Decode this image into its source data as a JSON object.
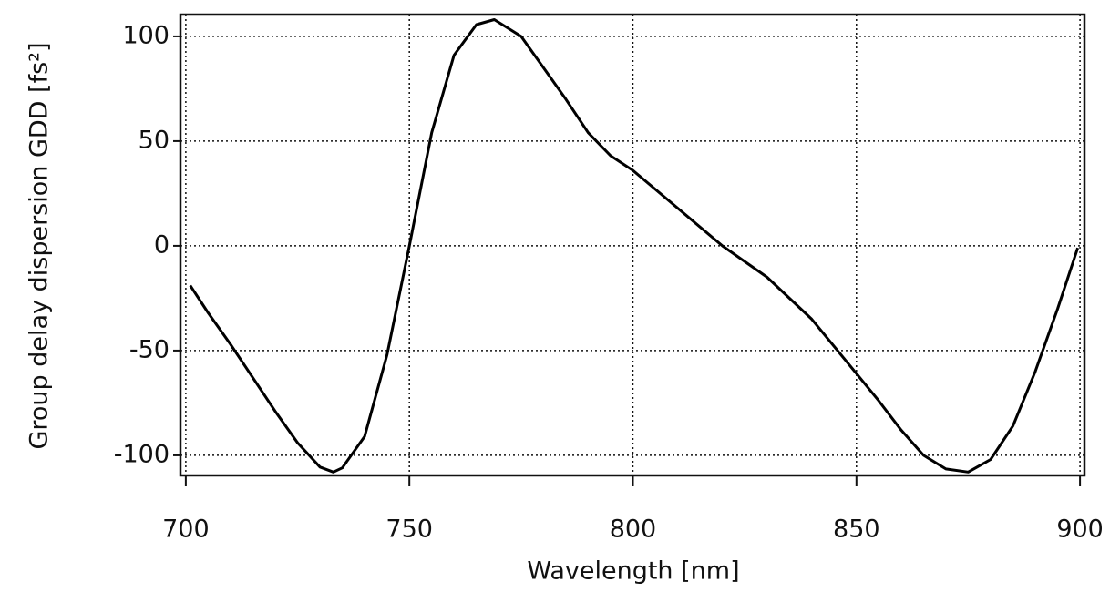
{
  "chart_data": {
    "type": "line",
    "xlabel": "Wavelength [nm]",
    "ylabel": "Group delay dispersion GDD [fs²]",
    "x": [
      701,
      705,
      710,
      715,
      720,
      725,
      730,
      733,
      735,
      740,
      745,
      750,
      755,
      760,
      765,
      769,
      775,
      780,
      785,
      790,
      795,
      800,
      810,
      820,
      830,
      840,
      850,
      855,
      860,
      865,
      870,
      875,
      880,
      885,
      890,
      895,
      899.5
    ],
    "series": [
      {
        "color": "#000000",
        "values": [
          -19,
          -32,
          -47,
          -63,
          -79,
          -94,
          -105.6,
          -108,
          -106,
          -91,
          -52,
          0,
          54,
          91,
          105.6,
          108,
          100,
          85,
          70,
          54,
          43,
          36,
          18,
          0,
          -15,
          -35,
          -61,
          -74,
          -88,
          -100,
          -106.5,
          -108,
          -102,
          -86,
          -60,
          -30,
          -1
        ]
      }
    ],
    "xlim": [
      698.8,
      901
    ],
    "xticks": [
      700,
      750,
      800,
      850,
      900
    ],
    "ylim": [
      -109.6,
      110.4
    ],
    "yticks": [
      -100,
      -50,
      0,
      50,
      100
    ],
    "grid": true
  }
}
